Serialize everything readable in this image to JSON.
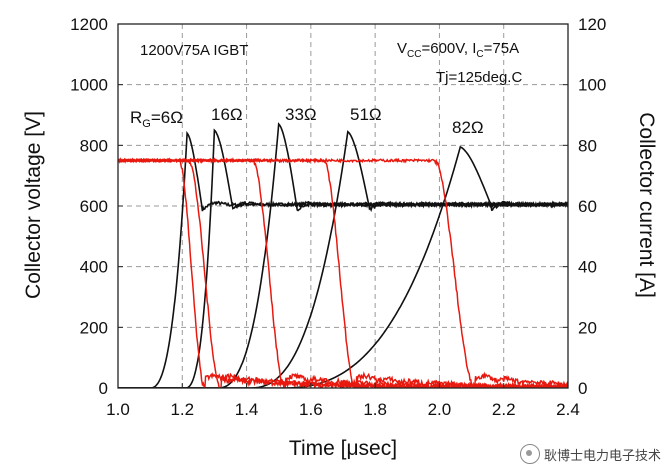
{
  "chart_data": {
    "type": "line",
    "title": "1200V75A IGBT",
    "conditions": {
      "vcc_ic": [
        "V",
        "CC",
        "=600V, I",
        "C",
        "=75A"
      ],
      "tj": "Tj=125deg.C"
    },
    "xlabel": "Time [μsec]",
    "ylabel_left": "Collector voltage [V]",
    "ylabel_right": "Collector current [A]",
    "xlim": [
      1.0,
      2.4
    ],
    "ylim_left": [
      0,
      1200
    ],
    "ylim_right": [
      0,
      120
    ],
    "x_ticks": [
      "1.0",
      "1.2",
      "1.4",
      "1.6",
      "1.8",
      "2.0",
      "2.2",
      "2.4"
    ],
    "y_left_ticks": [
      "0",
      "200",
      "400",
      "600",
      "800",
      "1000",
      "1200"
    ],
    "y_right_ticks": [
      "0",
      "20",
      "40",
      "60",
      "80",
      "100",
      "120"
    ],
    "grid": true,
    "voltage_color": "#111111",
    "current_color": "#e8190f",
    "gate_resistors": [
      {
        "label": "16Ω",
        "rise_start": 1.21,
        "peak_t": 1.3,
        "peak_v": 850,
        "fall_end": 1.355,
        "i_start": 1.22,
        "i_end": 1.32
      },
      {
        "label": "33Ω",
        "rise_start": 1.31,
        "peak_t": 1.5,
        "peak_v": 870,
        "fall_end": 1.555,
        "i_start": 1.42,
        "i_end": 1.52
      },
      {
        "label": "51Ω",
        "rise_start": 1.41,
        "peak_t": 1.715,
        "peak_v": 845,
        "fall_end": 1.78,
        "i_start": 1.64,
        "i_end": 1.74
      },
      {
        "label": "82Ω",
        "rise_start": 1.51,
        "peak_t": 2.065,
        "peak_v": 795,
        "fall_end": 2.16,
        "i_start": 1.985,
        "i_end": 2.11
      },
      {
        "label_prefix": "R",
        "label_sub": "G",
        "label": "=6Ω",
        "rise_start": 1.1,
        "peak_t": 1.215,
        "peak_v": 840,
        "fall_end": 1.26,
        "i_start": 1.19,
        "i_end": 1.27
      }
    ],
    "steady_voltage": 605,
    "on_current": 75
  },
  "watermark": "耿博士电力电子技术"
}
